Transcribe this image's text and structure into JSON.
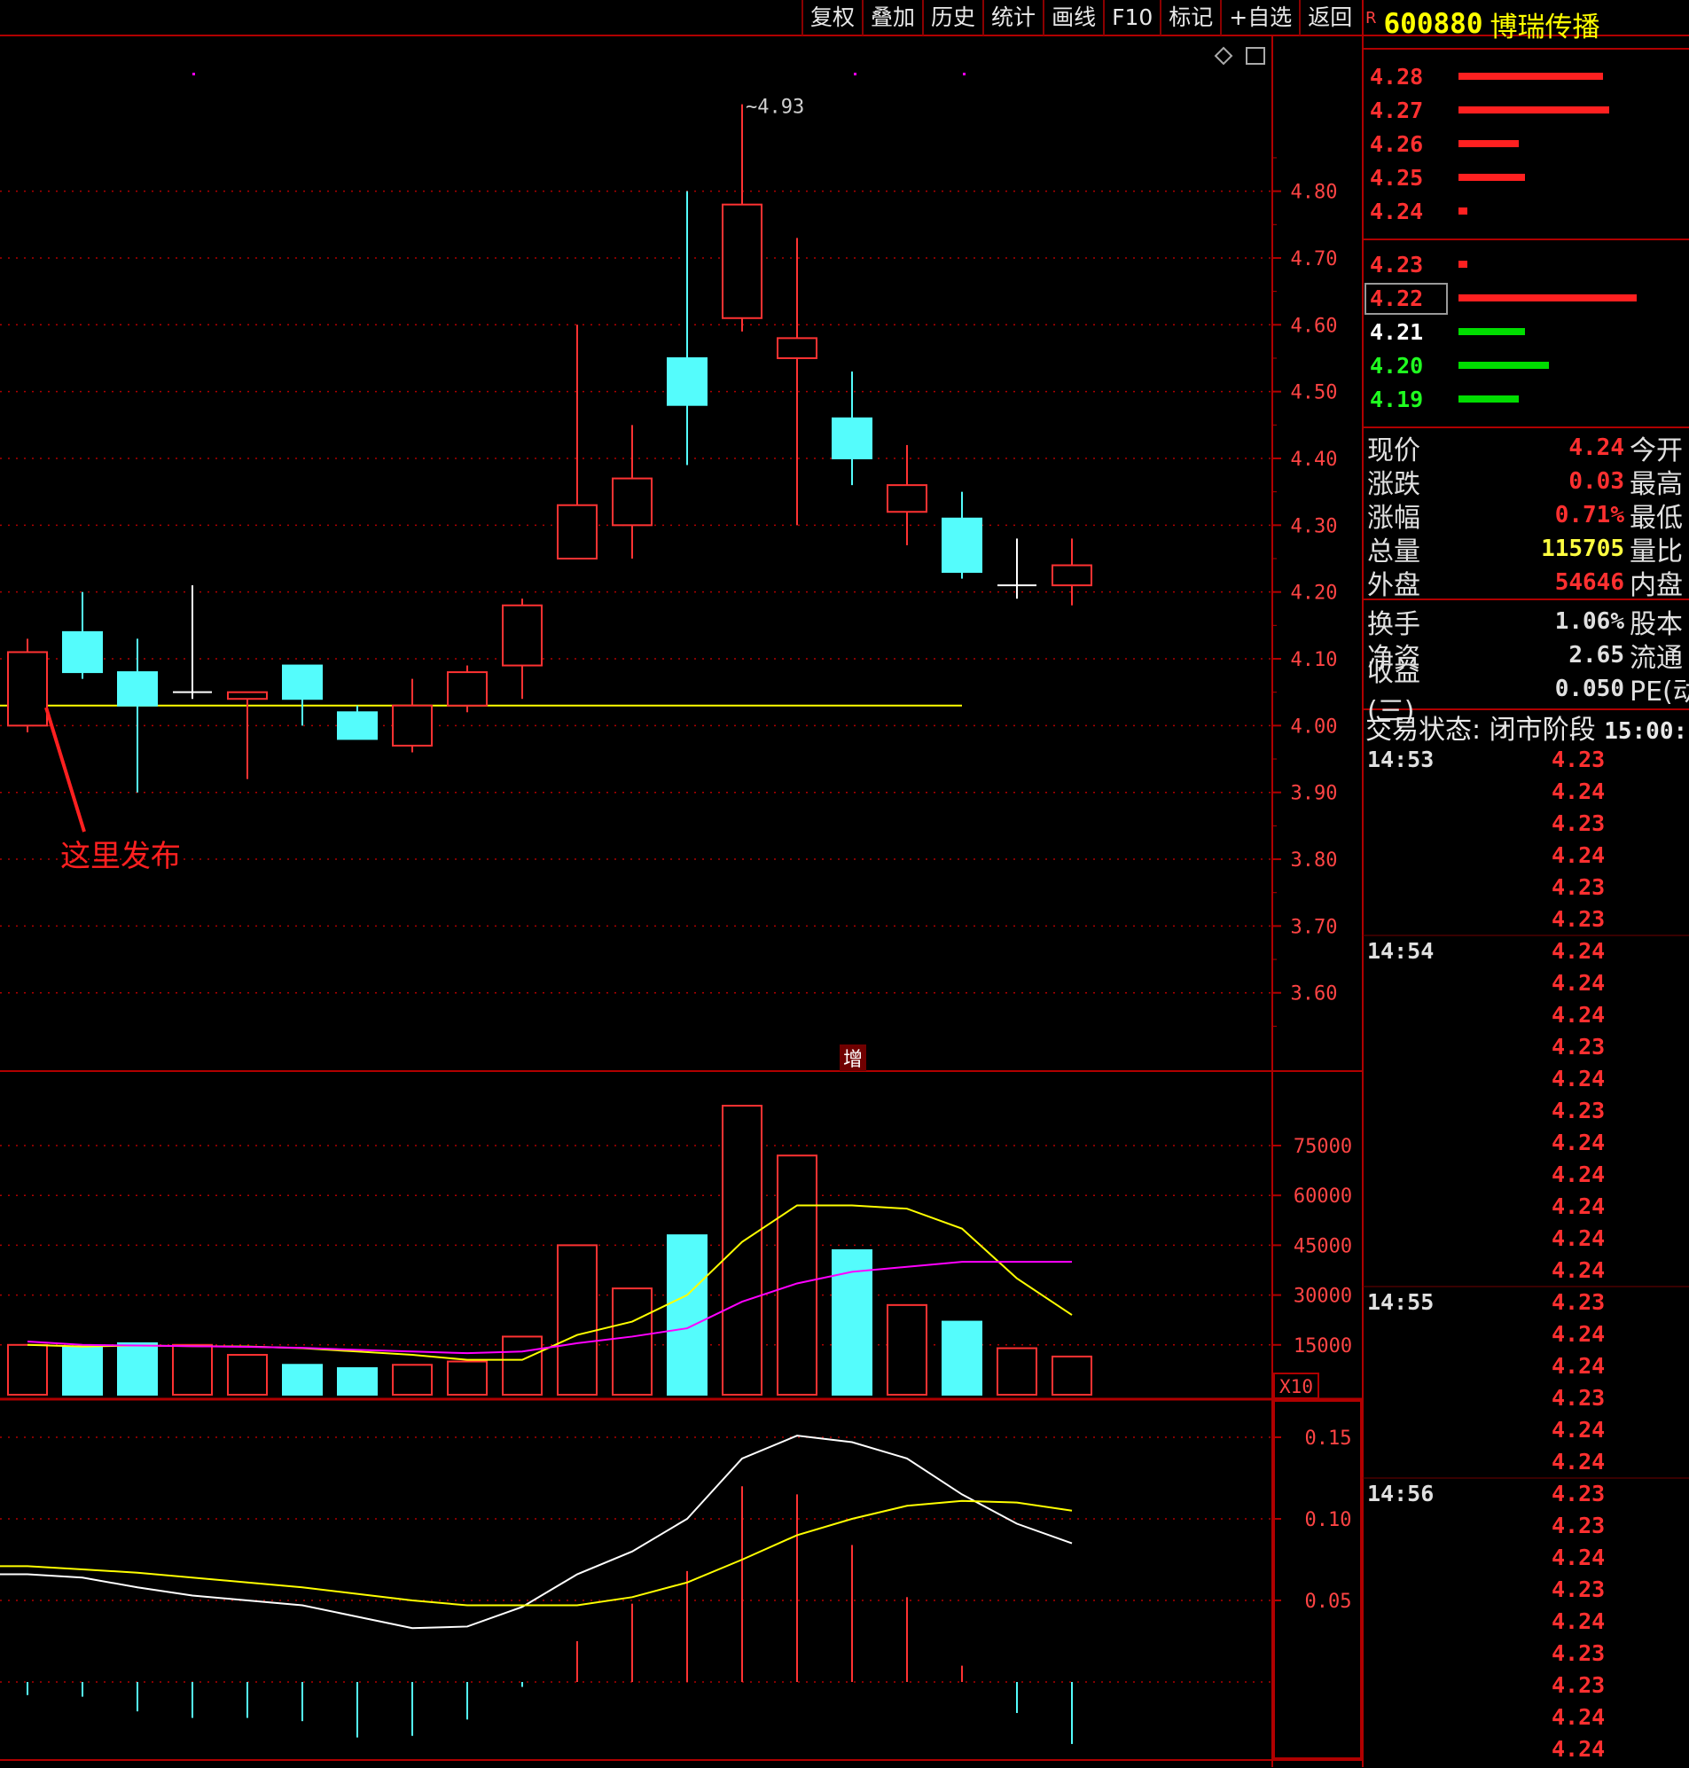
{
  "toolbar": {
    "items": [
      "复权",
      "叠加",
      "历史",
      "统计",
      "画线",
      "F10",
      "标记",
      "+自选",
      "返回"
    ]
  },
  "stock": {
    "prefix": "R",
    "code": "600880",
    "name": "博瑞传播"
  },
  "annotation": "这里发布",
  "volume_label": "增",
  "volume_unit": "X10",
  "colors": {
    "up": "#ff3232",
    "down": "#54fcfc",
    "grid": "#b00000",
    "ma_yellow": "#ffff00",
    "ma_magenta": "#ff00ff"
  },
  "order_book": {
    "asks": [
      {
        "price": "4.28",
        "size": 0.48
      },
      {
        "price": "4.27",
        "size": 0.5
      },
      {
        "price": "4.26",
        "size": 0.2
      },
      {
        "price": "4.25",
        "size": 0.22
      },
      {
        "price": "4.24",
        "size": 0.03
      }
    ],
    "bids": [
      {
        "price": "4.23",
        "size": 0.03,
        "color": "red"
      },
      {
        "price": "4.22",
        "size": 0.59,
        "color": "red"
      },
      {
        "price": "4.21",
        "size": 0.22,
        "color": "green"
      },
      {
        "price": "4.20",
        "size": 0.3,
        "color": "green"
      },
      {
        "price": "4.19",
        "size": 0.2,
        "color": "green"
      }
    ]
  },
  "quote": {
    "rows": [
      {
        "label": "现价",
        "value": "4.24",
        "label2": "今开",
        "color": "#ff3030"
      },
      {
        "label": "涨跌",
        "value": "0.03",
        "label2": "最高",
        "color": "#ff3030"
      },
      {
        "label": "涨幅",
        "value": "0.71%",
        "label2": "最低",
        "color": "#ff3030"
      },
      {
        "label": "总量",
        "value": "115705",
        "label2": "量比",
        "color": "#ffff40"
      },
      {
        "label": "外盘",
        "value": "54646",
        "label2": "内盘",
        "color": "#ff3030"
      },
      {
        "label": "换手",
        "value": "1.06%",
        "label2": "股本",
        "color": "#e0e0e0"
      },
      {
        "label": "净资",
        "value": "2.65",
        "label2": "流通",
        "color": "#e0e0e0"
      },
      {
        "label": "收益(三)",
        "value": "0.050",
        "label2": "PE(动)",
        "color": "#e0e0e0"
      }
    ]
  },
  "trade_status": {
    "label": "交易状态: 闭市阶段",
    "time": "15:00:"
  },
  "ticks": [
    {
      "time": "14:53",
      "price": "4.23"
    },
    {
      "time": "",
      "price": "4.24"
    },
    {
      "time": "",
      "price": "4.23"
    },
    {
      "time": "",
      "price": "4.24"
    },
    {
      "time": "",
      "price": "4.23"
    },
    {
      "time": "",
      "price": "4.23"
    },
    {
      "time": "14:54",
      "price": "4.24"
    },
    {
      "time": "",
      "price": "4.24"
    },
    {
      "time": "",
      "price": "4.24"
    },
    {
      "time": "",
      "price": "4.23"
    },
    {
      "time": "",
      "price": "4.24"
    },
    {
      "time": "",
      "price": "4.23"
    },
    {
      "time": "",
      "price": "4.24"
    },
    {
      "time": "",
      "price": "4.24"
    },
    {
      "time": "",
      "price": "4.24"
    },
    {
      "time": "",
      "price": "4.24"
    },
    {
      "time": "",
      "price": "4.24"
    },
    {
      "time": "14:55",
      "price": "4.23"
    },
    {
      "time": "",
      "price": "4.24"
    },
    {
      "time": "",
      "price": "4.24"
    },
    {
      "time": "",
      "price": "4.23"
    },
    {
      "time": "",
      "price": "4.24"
    },
    {
      "time": "",
      "price": "4.24"
    },
    {
      "time": "14:56",
      "price": "4.23"
    },
    {
      "time": "",
      "price": "4.23"
    },
    {
      "time": "",
      "price": "4.24"
    },
    {
      "time": "",
      "price": "4.23"
    },
    {
      "time": "",
      "price": "4.24"
    },
    {
      "time": "",
      "price": "4.23"
    },
    {
      "time": "",
      "price": "4.23"
    },
    {
      "time": "",
      "price": "4.24"
    },
    {
      "time": "",
      "price": "4.24"
    }
  ],
  "chart_data": {
    "type": "candlestick",
    "price_axis": {
      "ticks": [
        "4.80",
        "4.70",
        "4.60",
        "4.50",
        "4.40",
        "4.30",
        "4.20",
        "4.10",
        "4.00",
        "3.90",
        "3.80",
        "3.70",
        "3.60"
      ],
      "range": [
        3.52,
        4.98
      ]
    },
    "high_marker": "4.93",
    "candles": [
      {
        "o": 4.0,
        "c": 4.11,
        "h": 4.13,
        "l": 3.99
      },
      {
        "o": 4.14,
        "c": 4.08,
        "h": 4.2,
        "l": 4.07
      },
      {
        "o": 4.08,
        "c": 4.03,
        "h": 4.13,
        "l": 3.9
      },
      {
        "o": 4.05,
        "c": 4.05,
        "h": 4.21,
        "l": 4.04
      },
      {
        "o": 4.04,
        "c": 4.05,
        "h": 4.05,
        "l": 3.92
      },
      {
        "o": 4.09,
        "c": 4.04,
        "h": 4.09,
        "l": 4.0
      },
      {
        "o": 4.02,
        "c": 3.98,
        "h": 4.03,
        "l": 3.98
      },
      {
        "o": 3.97,
        "c": 4.03,
        "h": 4.07,
        "l": 3.96
      },
      {
        "o": 4.03,
        "c": 4.08,
        "h": 4.09,
        "l": 4.02
      },
      {
        "o": 4.09,
        "c": 4.18,
        "h": 4.19,
        "l": 4.04
      },
      {
        "o": 4.25,
        "c": 4.33,
        "h": 4.6,
        "l": 4.25
      },
      {
        "o": 4.3,
        "c": 4.37,
        "h": 4.45,
        "l": 4.25
      },
      {
        "o": 4.55,
        "c": 4.48,
        "h": 4.8,
        "l": 4.39
      },
      {
        "o": 4.61,
        "c": 4.78,
        "h": 4.93,
        "l": 4.59
      },
      {
        "o": 4.55,
        "c": 4.58,
        "h": 4.73,
        "l": 4.3
      },
      {
        "o": 4.46,
        "c": 4.4,
        "h": 4.53,
        "l": 4.36
      },
      {
        "o": 4.32,
        "c": 4.36,
        "h": 4.42,
        "l": 4.27
      },
      {
        "o": 4.31,
        "c": 4.23,
        "h": 4.35,
        "l": 4.22
      },
      {
        "o": 4.21,
        "c": 4.21,
        "h": 4.28,
        "l": 4.19
      },
      {
        "o": 4.21,
        "c": 4.24,
        "h": 4.28,
        "l": 4.18
      }
    ],
    "ref_line": 4.03,
    "volume": {
      "ticks": [
        "75000",
        "60000",
        "45000",
        "30000",
        "15000"
      ],
      "values": [
        15000,
        14500,
        15500,
        15000,
        12000,
        9000,
        8000,
        9000,
        10000,
        17500,
        45000,
        32000,
        48000,
        87000,
        72000,
        43500,
        27000,
        22000,
        14000,
        11500
      ],
      "ma_a": [
        15000,
        14500,
        14800,
        14600,
        14500,
        14000,
        13000,
        12000,
        10500,
        10500,
        18000,
        22000,
        30000,
        46000,
        57000,
        57000,
        56000,
        50000,
        35000,
        24000
      ],
      "ma_b": [
        16000,
        15000,
        14800,
        14600,
        14400,
        14100,
        13500,
        13000,
        12500,
        13000,
        15500,
        17500,
        20000,
        28000,
        33500,
        37000,
        38500,
        40000,
        40000,
        40000
      ]
    },
    "indicator": {
      "ticks": [
        "0.15",
        "0.10",
        "0.05"
      ],
      "line_white": [
        0.066,
        0.064,
        0.058,
        0.053,
        0.05,
        0.047,
        0.04,
        0.033,
        0.034,
        0.046,
        0.066,
        0.08,
        0.1,
        0.137,
        0.151,
        0.147,
        0.137,
        0.115,
        0.097,
        0.085
      ],
      "line_yellow": [
        0.071,
        0.069,
        0.067,
        0.064,
        0.061,
        0.058,
        0.054,
        0.05,
        0.047,
        0.047,
        0.047,
        0.052,
        0.061,
        0.075,
        0.09,
        0.1,
        0.108,
        0.111,
        0.11,
        0.105
      ],
      "bars": [
        -0.008,
        -0.009,
        -0.018,
        -0.022,
        -0.022,
        -0.024,
        -0.034,
        -0.033,
        -0.023,
        -0.003,
        0.025,
        0.048,
        0.068,
        0.12,
        0.115,
        0.084,
        0.052,
        0.01,
        -0.019,
        -0.038
      ]
    }
  }
}
